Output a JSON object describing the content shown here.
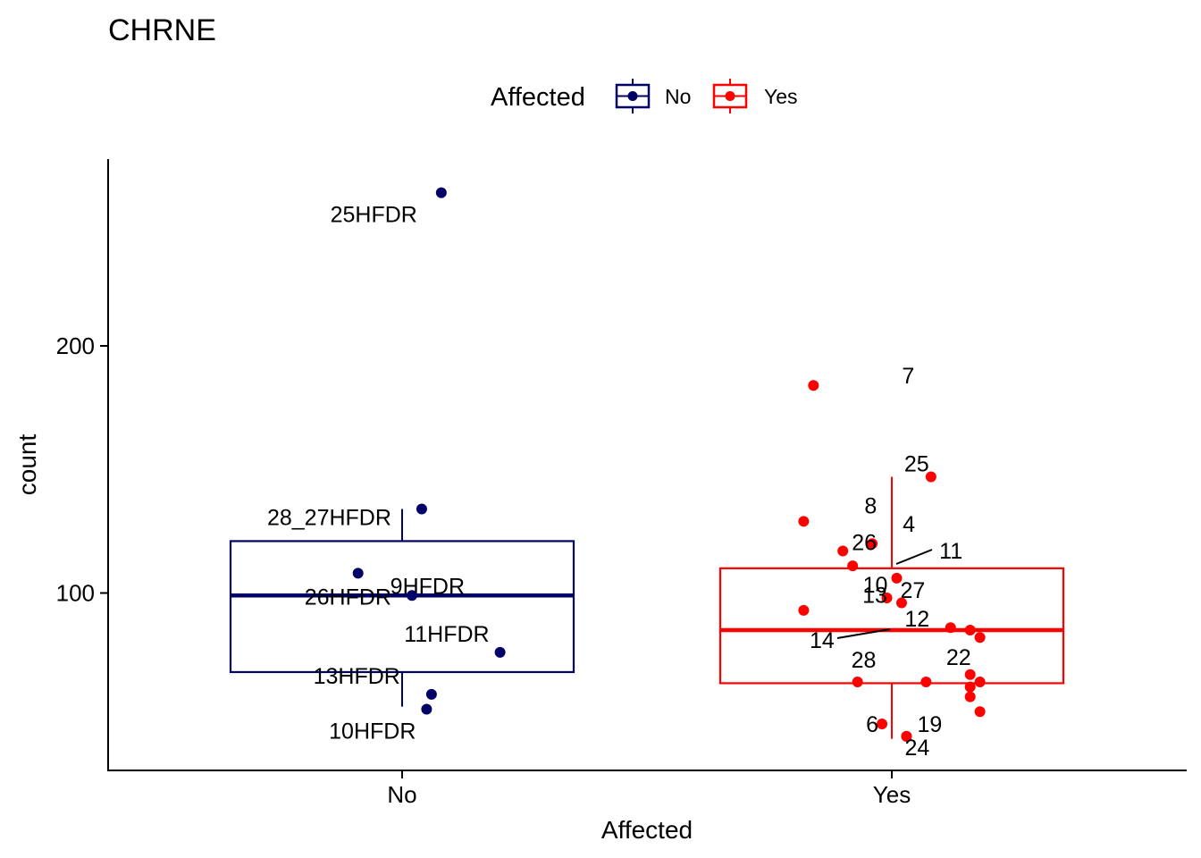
{
  "chart_data": {
    "type": "box",
    "title": "CHRNE",
    "xlabel": "Affected",
    "ylabel": "count",
    "categories": [
      "No",
      "Yes"
    ],
    "yticks": [
      100,
      200
    ],
    "ylim": [
      30,
      270
    ],
    "legend": {
      "title": "Affected",
      "position": "top",
      "entries": [
        {
          "label": "No",
          "color": "#000066"
        },
        {
          "label": "Yes",
          "color": "#FF0000"
        }
      ]
    },
    "boxes": [
      {
        "category": "No",
        "color": "#000066",
        "whisker_low": 54,
        "q1": 68,
        "median": 99,
        "q3": 121,
        "whisker_high": 134
      },
      {
        "category": "Yes",
        "color": "#FF0000",
        "whisker_low": 41,
        "q1": 63.5,
        "median": 85,
        "q3": 110,
        "whisker_high": 147
      }
    ],
    "series": [
      {
        "category": "No",
        "color": "#000066",
        "points": [
          {
            "jitter": 0.08,
            "y": 262,
            "label": "25HFDR"
          },
          {
            "jitter": 0.04,
            "y": 134,
            "label": "28_27HFDR"
          },
          {
            "jitter": -0.09,
            "y": 108,
            "label": "9HFDR"
          },
          {
            "jitter": 0.02,
            "y": 99,
            "label": "26HFDR"
          },
          {
            "jitter": 0.2,
            "y": 76,
            "label": "11HFDR"
          },
          {
            "jitter": 0.06,
            "y": 59,
            "label": "13HFDR"
          },
          {
            "jitter": 0.05,
            "y": 53,
            "label": "10HFDR"
          }
        ]
      },
      {
        "category": "Yes",
        "color": "#FF0000",
        "points": [
          {
            "jitter": -0.16,
            "y": 184,
            "label": "7"
          },
          {
            "jitter": 0.08,
            "y": 147,
            "label": "25"
          },
          {
            "jitter": -0.18,
            "y": 129,
            "label": "8"
          },
          {
            "jitter": -0.04,
            "y": 120,
            "label": "4"
          },
          {
            "jitter": -0.1,
            "y": 117,
            "label": "26"
          },
          {
            "jitter": -0.08,
            "y": 111,
            "label": "11"
          },
          {
            "jitter": 0.01,
            "y": 106,
            "label": "10"
          },
          {
            "jitter": -0.01,
            "y": 98,
            "label": "27"
          },
          {
            "jitter": 0.02,
            "y": 96,
            "label": "13"
          },
          {
            "jitter": -0.18,
            "y": 93,
            "label": "12"
          },
          {
            "jitter": 0.12,
            "y": 86,
            "label": "14"
          },
          {
            "jitter": 0.16,
            "y": 85,
            "label": ""
          },
          {
            "jitter": 0.18,
            "y": 82,
            "label": ""
          },
          {
            "jitter": 0.16,
            "y": 67,
            "label": ""
          },
          {
            "jitter": 0.18,
            "y": 64,
            "label": "22"
          },
          {
            "jitter": -0.07,
            "y": 64,
            "label": "28"
          },
          {
            "jitter": 0.07,
            "y": 64,
            "label": ""
          },
          {
            "jitter": 0.16,
            "y": 62,
            "label": ""
          },
          {
            "jitter": 0.16,
            "y": 58,
            "label": ""
          },
          {
            "jitter": 0.18,
            "y": 52,
            "label": ""
          },
          {
            "jitter": -0.02,
            "y": 47,
            "label": "6"
          },
          {
            "jitter": 0.03,
            "y": 42,
            "label": "19"
          },
          {
            "jitter": 0.03,
            "y": 42,
            "label": "24"
          }
        ]
      }
    ]
  }
}
